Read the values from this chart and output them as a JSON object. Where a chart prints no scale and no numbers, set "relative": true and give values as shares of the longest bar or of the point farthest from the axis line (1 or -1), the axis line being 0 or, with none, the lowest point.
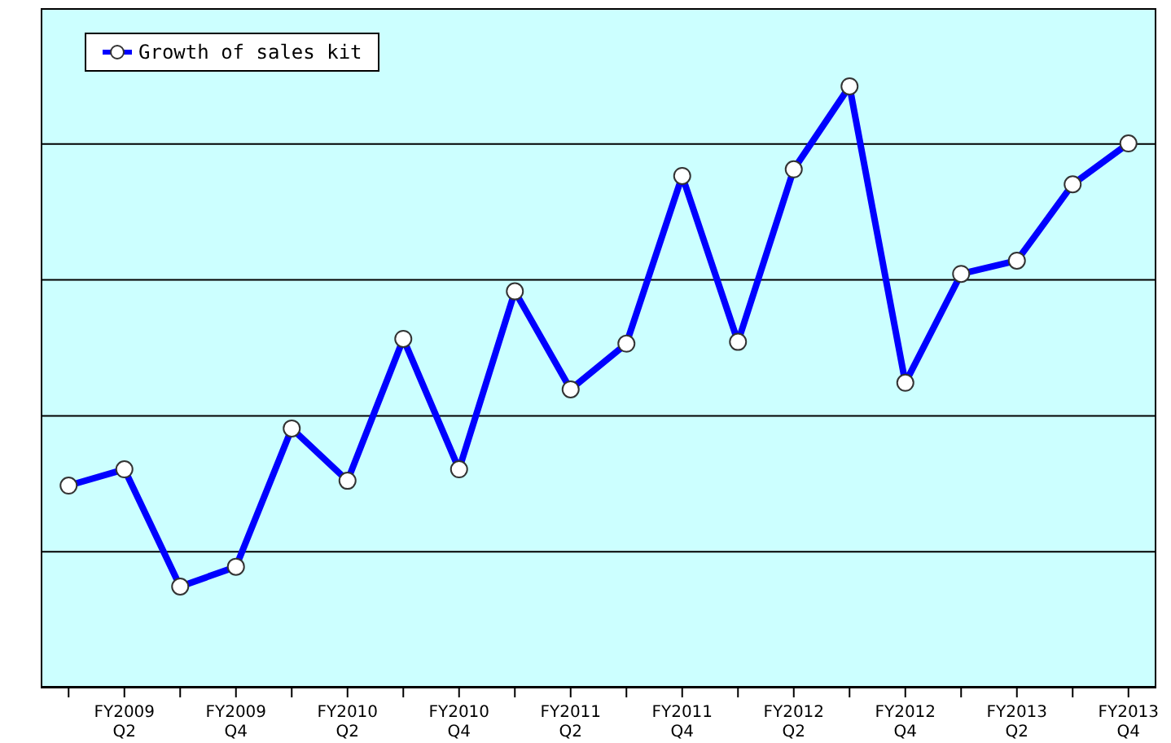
{
  "chart_data": {
    "type": "line",
    "relative": true,
    "categories": [
      null,
      "FY2009 Q2",
      null,
      "FY2009 Q4",
      null,
      "FY2010 Q2",
      null,
      "FY2010 Q4",
      null,
      "FY2011 Q2",
      null,
      "FY2011 Q4",
      null,
      "FY2012 Q2",
      null,
      "FY2012 Q4",
      null,
      "FY2013 Q2",
      null,
      "FY2013 Q4"
    ],
    "series": [
      {
        "name": "Growth of sales kit",
        "color": "#0000ff",
        "values": [
          0.336,
          0.363,
          0.168,
          0.201,
          0.431,
          0.344,
          0.58,
          0.363,
          0.659,
          0.496,
          0.572,
          0.851,
          0.575,
          0.862,
          1,
          0.507,
          0.688,
          0.71,
          0.837,
          0.905
        ]
      }
    ],
    "grid": "y",
    "legend": "top left",
    "marker": "circle",
    "line_style": "solid"
  }
}
